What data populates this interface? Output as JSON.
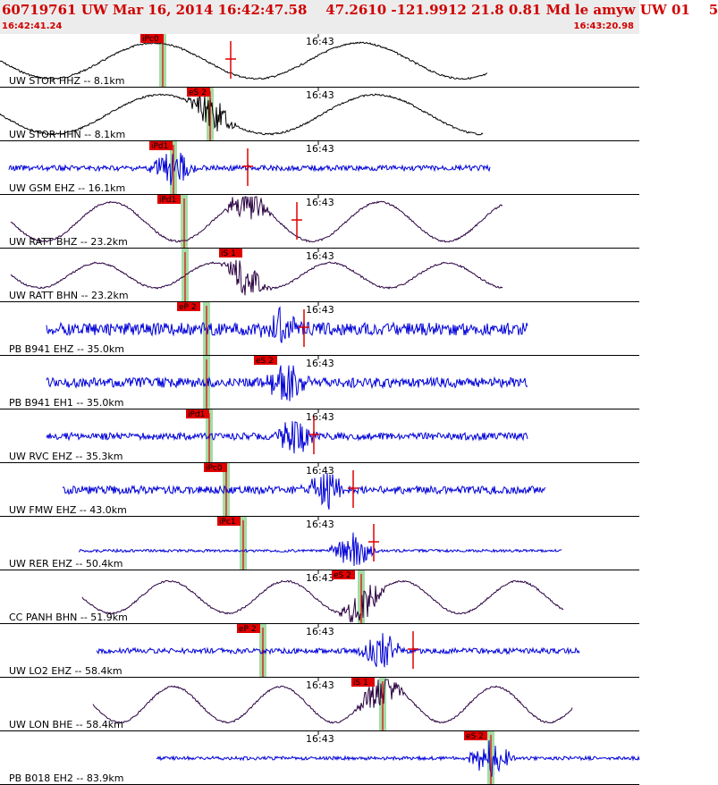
{
  "header": {
    "title": "60719761 UW Mar 16, 2014 16:42:47.58    47.2610 -121.9912 21.8 0.81 Md le amyw UW 01    5",
    "start_time": "16:42:41.24",
    "end_time": "16:43:20.98"
  },
  "tick_label": "16:43",
  "colors": {
    "title": "#d00000",
    "pick": "#e00000",
    "window": "#a6dba6",
    "blue": "#0000d8",
    "purple": "#2a0040",
    "black": "#000000"
  },
  "traces": [
    {
      "label": "UW STOR HHZ -- 8.1km",
      "color": "black",
      "pick": "iPc0"
    },
    {
      "label": "UW STOR HHN -- 8.1km",
      "color": "black",
      "pick": "eS 2"
    },
    {
      "label": "UW GSM EHZ -- 16.1km",
      "color": "blue",
      "pick": "iPd1"
    },
    {
      "label": "UW RATT BHZ -- 23.2km",
      "color": "purple",
      "pick": "iPd1"
    },
    {
      "label": "UW RATT BHN -- 23.2km",
      "color": "purple",
      "pick": "iS 1"
    },
    {
      "label": "PB B941 EHZ -- 35.0km",
      "color": "blue",
      "pick": "eP 2"
    },
    {
      "label": "PB B941 EH1 -- 35.0km",
      "color": "blue",
      "pick": "eS 2"
    },
    {
      "label": "UW RVC EHZ -- 35.3km",
      "color": "blue",
      "pick": "iPd1"
    },
    {
      "label": "UW FMW EHZ -- 43.0km",
      "color": "blue",
      "pick": "iPc0"
    },
    {
      "label": "UW RER EHZ -- 50.4km",
      "color": "blue",
      "pick": "iPc1"
    },
    {
      "label": "CC PANH BHN -- 51.9km",
      "color": "purple",
      "pick": "eS 2"
    },
    {
      "label": "UW LO2 EHZ -- 58.4km",
      "color": "blue",
      "pick": "eP 2"
    },
    {
      "label": "UW LON BHE -- 58.4km",
      "color": "purple",
      "pick": "iS 1"
    },
    {
      "label": "PB B018 EH2 -- 83.9km",
      "color": "blue",
      "pick": "eS 2"
    }
  ]
}
